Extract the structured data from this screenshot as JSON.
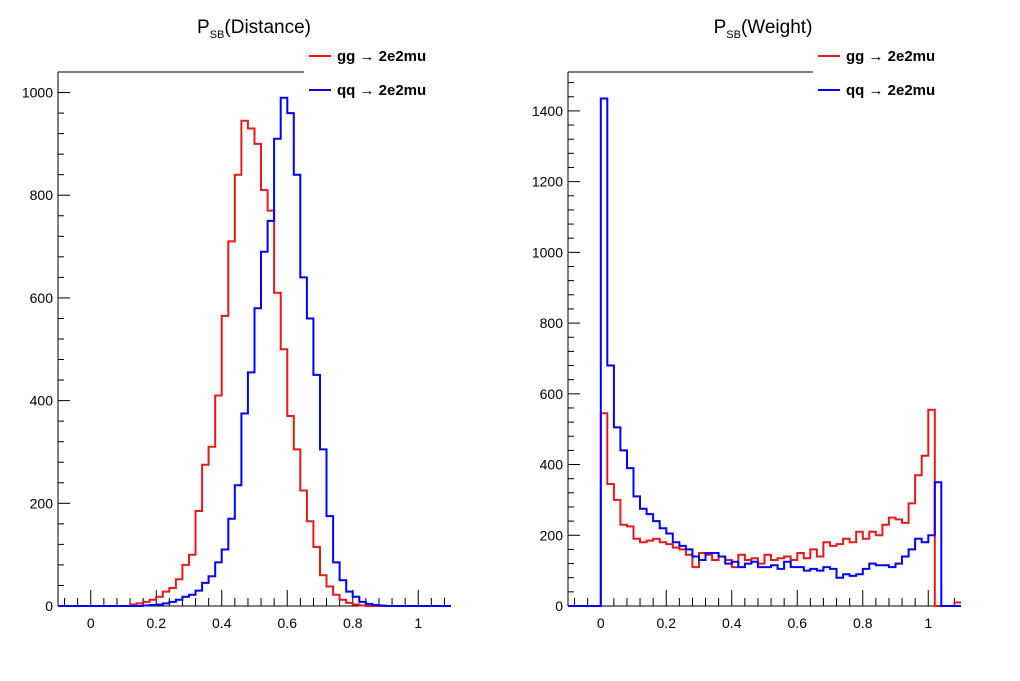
{
  "chart_data": [
    {
      "type": "line",
      "title_main": "P",
      "title_sub": "SB",
      "title_rest": "(Distance)",
      "xlabel": "",
      "ylabel": "",
      "xlim": [
        -0.1,
        1.1
      ],
      "ylim": [
        0,
        1040
      ],
      "x_ticks": [
        0,
        0.2,
        0.4,
        0.6,
        0.8,
        1
      ],
      "x_tick_labels": [
        "0",
        "0.2",
        "0.4",
        "0.6",
        "0.8",
        "1"
      ],
      "y_ticks": [
        0,
        200,
        400,
        600,
        800,
        1000
      ],
      "y_tick_labels": [
        "0",
        "200",
        "400",
        "600",
        "800",
        "1000"
      ],
      "bin_start": -0.1,
      "bin_width": 0.02,
      "legend_position": "top-right",
      "series": [
        {
          "name": "gg → 2e2mu",
          "color": "#e41a1c",
          "values": [
            0,
            0,
            0,
            0,
            0,
            0,
            0,
            0,
            0,
            0,
            0,
            3,
            5,
            8,
            12,
            18,
            28,
            35,
            52,
            80,
            100,
            185,
            275,
            310,
            410,
            565,
            710,
            840,
            945,
            930,
            900,
            810,
            770,
            610,
            500,
            370,
            305,
            225,
            165,
            115,
            60,
            38,
            22,
            12,
            6,
            3,
            1,
            0,
            0,
            0,
            0,
            0,
            0,
            0,
            0,
            0,
            0,
            0,
            0,
            0
          ]
        },
        {
          "name": "qq → 2e2mu",
          "color": "#0000ff",
          "values": [
            0,
            0,
            0,
            0,
            0,
            0,
            0,
            0,
            0,
            0,
            0,
            0,
            0,
            1,
            2,
            3,
            5,
            8,
            12,
            18,
            22,
            30,
            45,
            58,
            85,
            110,
            170,
            235,
            375,
            455,
            580,
            690,
            750,
            910,
            990,
            960,
            840,
            640,
            560,
            450,
            305,
            175,
            85,
            50,
            28,
            18,
            8,
            4,
            2,
            1,
            0,
            0,
            0,
            0,
            0,
            0,
            0,
            0,
            0,
            0
          ]
        }
      ]
    },
    {
      "type": "line",
      "title_main": "P",
      "title_sub": "SB",
      "title_rest": "(Weight)",
      "xlabel": "",
      "ylabel": "",
      "xlim": [
        -0.1,
        1.1
      ],
      "ylim": [
        0,
        1510
      ],
      "x_ticks": [
        0,
        0.2,
        0.4,
        0.6,
        0.8,
        1
      ],
      "x_tick_labels": [
        "0",
        "0.2",
        "0.4",
        "0.6",
        "0.8",
        "1"
      ],
      "y_ticks": [
        0,
        200,
        400,
        600,
        800,
        1000,
        1200,
        1400
      ],
      "y_tick_labels": [
        "0",
        "200",
        "400",
        "600",
        "800",
        "1000",
        "1200",
        "1400"
      ],
      "bin_start": -0.1,
      "bin_width": 0.02,
      "legend_position": "top-right",
      "series": [
        {
          "name": "gg → 2e2mu",
          "color": "#e41a1c",
          "values": [
            0,
            0,
            0,
            0,
            0,
            545,
            345,
            300,
            230,
            225,
            190,
            180,
            185,
            190,
            180,
            175,
            165,
            160,
            145,
            110,
            150,
            145,
            130,
            140,
            130,
            110,
            145,
            130,
            135,
            120,
            145,
            130,
            135,
            140,
            130,
            150,
            135,
            160,
            140,
            180,
            170,
            175,
            190,
            180,
            210,
            190,
            210,
            200,
            230,
            250,
            245,
            235,
            290,
            370,
            425,
            555,
            0,
            0,
            0,
            10
          ]
        },
        {
          "name": "qq → 2e2mu",
          "color": "#0000ff",
          "values": [
            0,
            0,
            0,
            0,
            0,
            1435,
            680,
            505,
            440,
            390,
            310,
            275,
            260,
            240,
            220,
            205,
            180,
            170,
            160,
            140,
            130,
            150,
            150,
            140,
            120,
            125,
            110,
            120,
            125,
            110,
            110,
            115,
            105,
            125,
            110,
            110,
            100,
            105,
            100,
            110,
            105,
            80,
            90,
            85,
            90,
            105,
            120,
            115,
            115,
            110,
            120,
            140,
            160,
            190,
            180,
            200,
            350,
            0,
            0,
            0
          ]
        }
      ]
    }
  ]
}
